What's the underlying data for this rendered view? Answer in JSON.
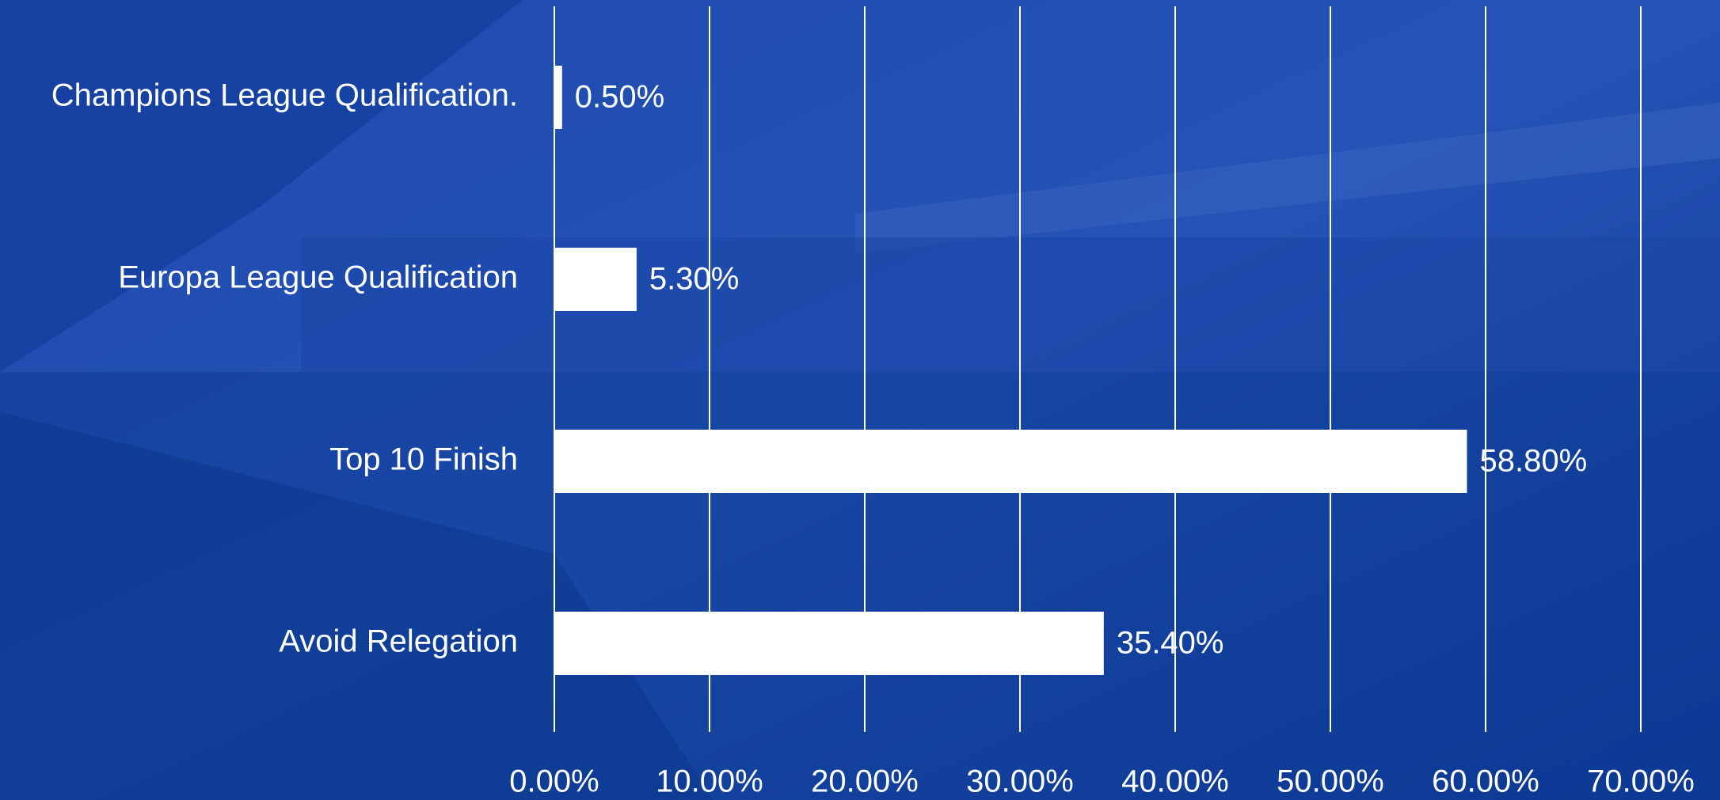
{
  "chart_data": {
    "type": "bar",
    "orientation": "horizontal",
    "categories": [
      "Champions League Qualification.",
      "Europa League Qualification",
      "Top 10 Finish",
      "Avoid Relegation"
    ],
    "values": [
      0.5,
      5.3,
      58.8,
      35.4
    ],
    "value_labels": [
      "0.50%",
      "5.30%",
      "58.80%",
      "35.40%"
    ],
    "color": "#ffffff",
    "xlim": [
      0,
      70
    ],
    "xticks": [
      {
        "value": 0,
        "label": "0.00%"
      },
      {
        "value": 10,
        "label": "10.00%"
      },
      {
        "value": 20,
        "label": "20.00%"
      },
      {
        "value": 30,
        "label": "30.00%"
      },
      {
        "value": 40,
        "label": "40.00%"
      },
      {
        "value": 50,
        "label": "50.00%"
      },
      {
        "value": 60,
        "label": "60.00%"
      },
      {
        "value": 70,
        "label": "70.00%"
      }
    ],
    "grid": true
  }
}
